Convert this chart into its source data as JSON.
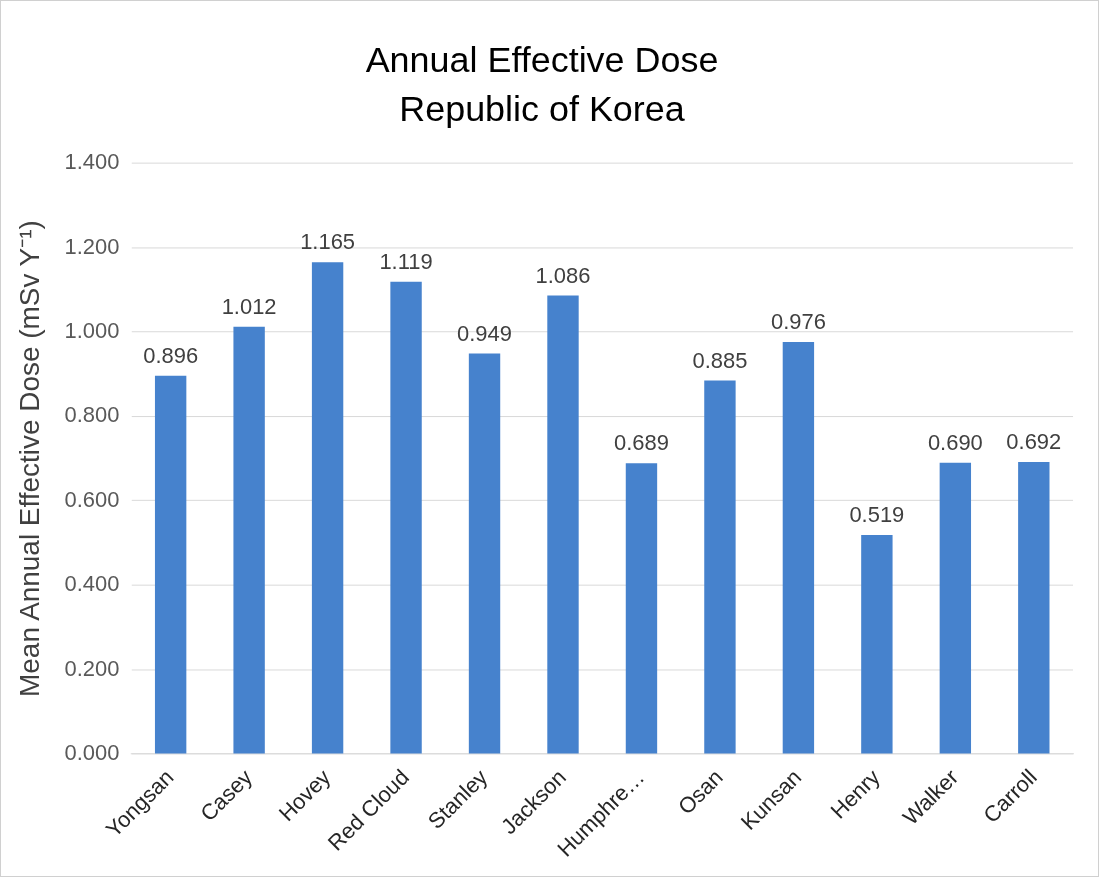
{
  "chart_data": {
    "type": "bar",
    "title": "Annual Effective Dose",
    "subtitle": "Republic of Korea",
    "ylabel": "Mean Annual Effective Dose (mSv Y⁻¹)",
    "categories": [
      "Yongsan",
      "Casey",
      "Hovey",
      "Red Cloud",
      "Stanley",
      "Jackson",
      "Humphre…",
      "Osan",
      "Kunsan",
      "Henry",
      "Walker",
      "Carroll"
    ],
    "values": [
      0.896,
      1.012,
      1.165,
      1.119,
      0.949,
      1.086,
      0.689,
      0.885,
      0.976,
      0.519,
      0.69,
      0.692
    ],
    "value_labels": [
      "0.896",
      "1.012",
      "1.165",
      "1.119",
      "0.949",
      "1.086",
      "0.689",
      "0.885",
      "0.976",
      "0.519",
      "0.690",
      "0.692"
    ],
    "color": "#4682cd",
    "ylim": [
      0,
      1.4
    ],
    "yticks": [
      {
        "value": 0,
        "label": "0.000"
      },
      {
        "value": 0.2,
        "label": "0.200"
      },
      {
        "value": 0.4,
        "label": "0.400"
      },
      {
        "value": 0.6,
        "label": "0.600"
      },
      {
        "value": 0.8,
        "label": "0.800"
      },
      {
        "value": 1,
        "label": "1.000"
      },
      {
        "value": 1.2,
        "label": "1.200"
      },
      {
        "value": 1.4,
        "label": "1.400"
      }
    ],
    "grid": true
  }
}
